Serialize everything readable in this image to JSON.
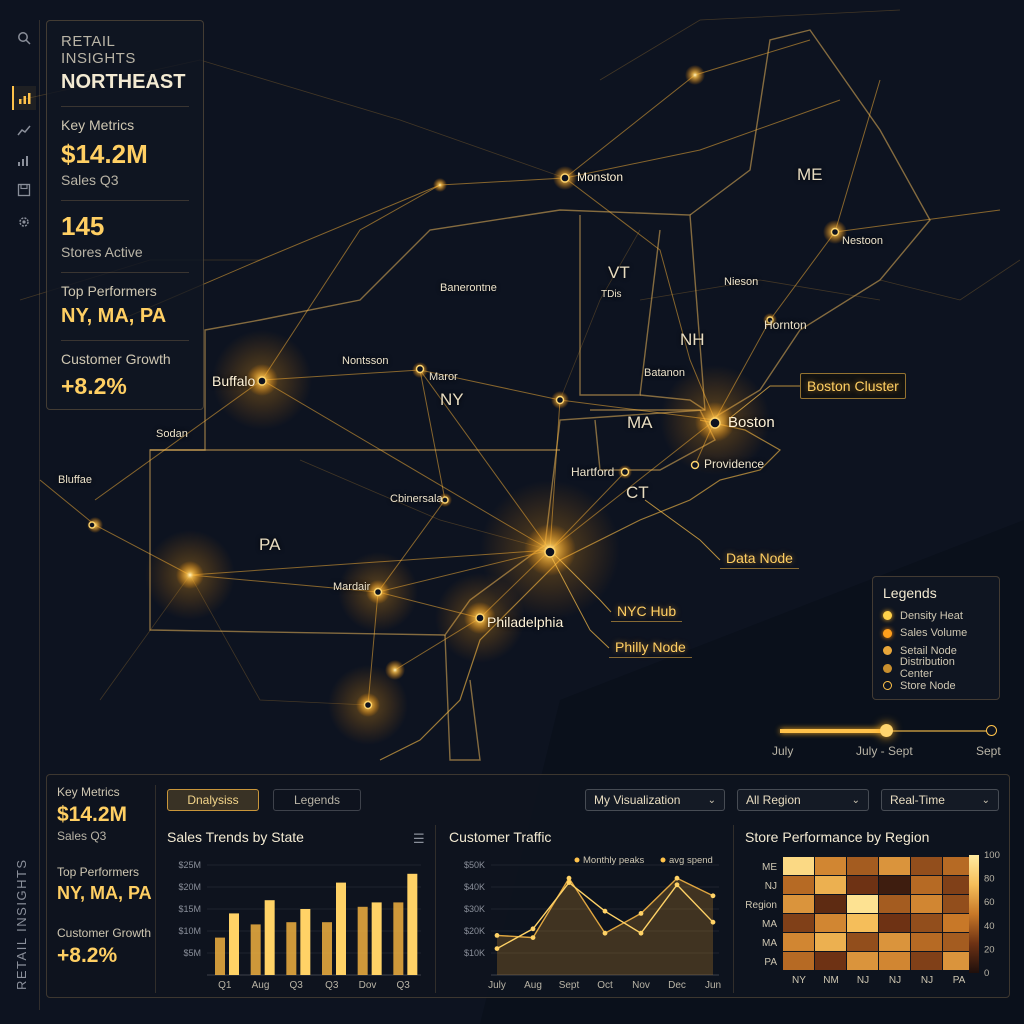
{
  "rail": {
    "icons": [
      "search-icon",
      "bar-chart-icon",
      "trend-icon",
      "stats-icon",
      "save-icon",
      "gear-icon"
    ],
    "vertical_label": "RETAIL INSIGHTS"
  },
  "kpi_panel": {
    "title": "RETAIL INSIGHTS",
    "subtitle": "NORTHEAST",
    "key_metrics_label": "Key Metrics",
    "sales_value": "$14.2M",
    "sales_label": "Sales Q3",
    "stores_value": "145",
    "stores_label": "Stores Active",
    "top_label": "Top Performers",
    "top_value": "NY, MA, PA",
    "growth_label": "Customer Growth",
    "growth_value": "+8.2%"
  },
  "map": {
    "states": [
      "ME",
      "VT",
      "NH",
      "NY",
      "MA",
      "CT",
      "PA"
    ],
    "cities": {
      "monston": "Monston",
      "nestoon": "Nestoon",
      "nieson": "Nieson",
      "hornton": "Hornton",
      "banerontne": "Banerontne",
      "nontsson": "Nontsson",
      "buffalo": "Buffalo",
      "maror": "Maror",
      "batanon": "Batanon",
      "boston": "Boston",
      "providence": "Providence",
      "hartford": "Hartford",
      "sodan": "Sodan",
      "bluffae": "Bluffae",
      "cbinersala": "Cbinersala",
      "mardair": "Mardair",
      "philadelphia": "Philadelphia",
      "tdis": "TDis"
    },
    "callouts": {
      "boston_cluster": "Boston Cluster",
      "data_node": "Data Node",
      "nyc_hub": "NYC Hub",
      "philly_node": "Philly Node"
    }
  },
  "legend": {
    "title": "Legends",
    "items": [
      {
        "label": "Density Heat",
        "color": "#ffd24a"
      },
      {
        "label": "Sales Volume",
        "color": "#ff9f1c"
      },
      {
        "label": "Setail Node",
        "color": "#e8a63a"
      },
      {
        "label": "Distribution Center",
        "color": "#c98f2e"
      },
      {
        "label": "Store Node",
        "color": "#ffc24a"
      }
    ]
  },
  "timeline": {
    "start": "July",
    "middle": "July - Sept",
    "end": "Sept",
    "position": 0.5
  },
  "bottom": {
    "kpis": {
      "key_metrics_label": "Key Metrics",
      "sales_value": "$14.2M",
      "sales_label": "Sales Q3",
      "top_label": "Top Performers",
      "top_value": "NY, MA, PA",
      "growth_label": "Customer Growth",
      "growth_value": "+8.2%"
    },
    "tabs": {
      "analysis": "Dnalysiss",
      "legends": "Legends"
    },
    "selects": {
      "visualization": "My Visualization",
      "region": "All Region",
      "mode": "Real-Time"
    },
    "chart_titles": {
      "sales": "Sales Trends by State",
      "traffic": "Customer Traffic",
      "performance": "Store Performance by Region"
    }
  },
  "colors": {
    "accent": "#ffc24a",
    "accent_bright": "#ffd56e",
    "background": "#0d1320"
  },
  "chart_data": [
    {
      "type": "bar",
      "title": "Sales Trends by State",
      "categories": [
        "Q1",
        "Aug",
        "Q3",
        "Q3",
        "Dov",
        "Q3"
      ],
      "ylim": [
        0,
        25
      ],
      "y_ticks": [
        "$5M",
        "$10M",
        "$15M",
        "$20M",
        "$25M"
      ],
      "series": [
        {
          "values": [
            8.5,
            11.5,
            12,
            12,
            15.5,
            16.5
          ]
        },
        {
          "values": [
            14,
            17,
            15,
            21,
            16.5,
            23
          ]
        }
      ]
    },
    {
      "type": "line",
      "title": "Customer Traffic",
      "x": [
        "July",
        "Aug",
        "Sept",
        "Oct",
        "Nov",
        "Dec",
        "Jun"
      ],
      "ylim": [
        0,
        50
      ],
      "y_ticks": [
        "$10K",
        "$20K",
        "$30K",
        "$40K",
        "$50K"
      ],
      "series": [
        {
          "name": "Monthly peaks",
          "values": [
            18,
            17,
            44,
            19,
            28,
            44,
            36
          ]
        },
        {
          "name": "avg spend",
          "values": [
            12,
            21,
            42,
            29,
            19,
            41,
            24
          ]
        }
      ]
    },
    {
      "type": "heatmap",
      "title": "Store Performance by Region",
      "rows": [
        "ME",
        "NJ",
        "Region",
        "MA",
        "MA",
        "PA"
      ],
      "columns": [
        "NY",
        "NM",
        "NJ",
        "NJ",
        "NJ",
        "PA"
      ],
      "scale": [
        0,
        100
      ],
      "scale_ticks": [
        "0",
        "20",
        "40",
        "60",
        "80",
        "100"
      ],
      "values": [
        [
          90,
          55,
          40,
          60,
          35,
          45
        ],
        [
          45,
          70,
          25,
          10,
          45,
          30
        ],
        [
          60,
          20,
          95,
          40,
          55,
          35
        ],
        [
          30,
          55,
          75,
          25,
          35,
          50
        ],
        [
          55,
          70,
          35,
          60,
          45,
          40
        ],
        [
          45,
          25,
          60,
          55,
          30,
          60
        ]
      ]
    }
  ]
}
